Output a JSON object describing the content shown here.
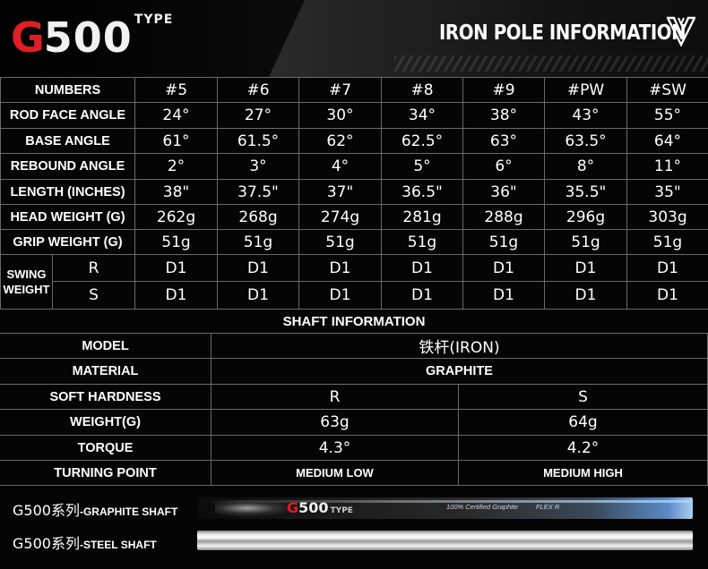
{
  "header": {
    "logo_g": "G",
    "logo_num": "500",
    "logo_type": "TYPE",
    "title": "IRON POLE INFORMATION",
    "accent_color": "#e01e24"
  },
  "iron_table": {
    "header_label": "NUMBERS",
    "clubs": [
      "#5",
      "#6",
      "#7",
      "#8",
      "#9",
      "#PW",
      "#SW"
    ],
    "rows": [
      {
        "label": "ROD FACE ANGLE",
        "values": [
          "24°",
          "27°",
          "30°",
          "34°",
          "38°",
          "43°",
          "55°"
        ]
      },
      {
        "label": "BASE ANGLE",
        "values": [
          "61°",
          "61.5°",
          "62°",
          "62.5°",
          "63°",
          "63.5°",
          "64°"
        ]
      },
      {
        "label": "REBOUND ANGLE",
        "values": [
          "2°",
          "3°",
          "4°",
          "5°",
          "6°",
          "8°",
          "11°"
        ]
      },
      {
        "label": "LENGTH (INCHES)",
        "values": [
          "38\"",
          "37.5\"",
          "37\"",
          "36.5\"",
          "36\"",
          "35.5\"",
          "35\""
        ]
      },
      {
        "label": "HEAD WEIGHT (G)",
        "values": [
          "262g",
          "268g",
          "274g",
          "281g",
          "288g",
          "296g",
          "303g"
        ]
      },
      {
        "label": "GRIP WEIGHT (G)",
        "values": [
          "51g",
          "51g",
          "51g",
          "51g",
          "51g",
          "51g",
          "51g"
        ]
      }
    ],
    "swing_weight": {
      "label_line1": "SWING",
      "label_line2": "WEIGHT",
      "rows": [
        {
          "flex": "R",
          "values": [
            "D1",
            "D1",
            "D1",
            "D1",
            "D1",
            "D1",
            "D1"
          ]
        },
        {
          "flex": "S",
          "values": [
            "D1",
            "D1",
            "D1",
            "D1",
            "D1",
            "D1",
            "D1"
          ]
        }
      ]
    }
  },
  "shaft_info": {
    "title": "SHAFT INFORMATION",
    "model_label": "MODEL",
    "model_value": "铁杆(IRON)",
    "material_label": "MATERIAL",
    "material_value": "GRAPHITE",
    "rows": [
      {
        "label": "SOFT HARDNESS",
        "r": "R",
        "s": "S",
        "style": "val"
      },
      {
        "label": "WEIGHT(G)",
        "r": "63g",
        "s": "64g",
        "style": "val"
      },
      {
        "label": "TORQUE",
        "r": "4.3°",
        "s": "4.2°",
        "style": "val"
      },
      {
        "label": "TURNING POINT",
        "r": "MEDIUM LOW",
        "s": "MEDIUM HIGH",
        "style": "bold"
      }
    ]
  },
  "shafts": {
    "graphite": {
      "prefix": "G500系列",
      "suffix": "-GRAPHITE SHAFT",
      "print_text": "100% Certified Graphite",
      "flex_text": "FLEX R"
    },
    "steel": {
      "prefix": "G500系列",
      "suffix": "-STEEL SHAFT"
    }
  }
}
